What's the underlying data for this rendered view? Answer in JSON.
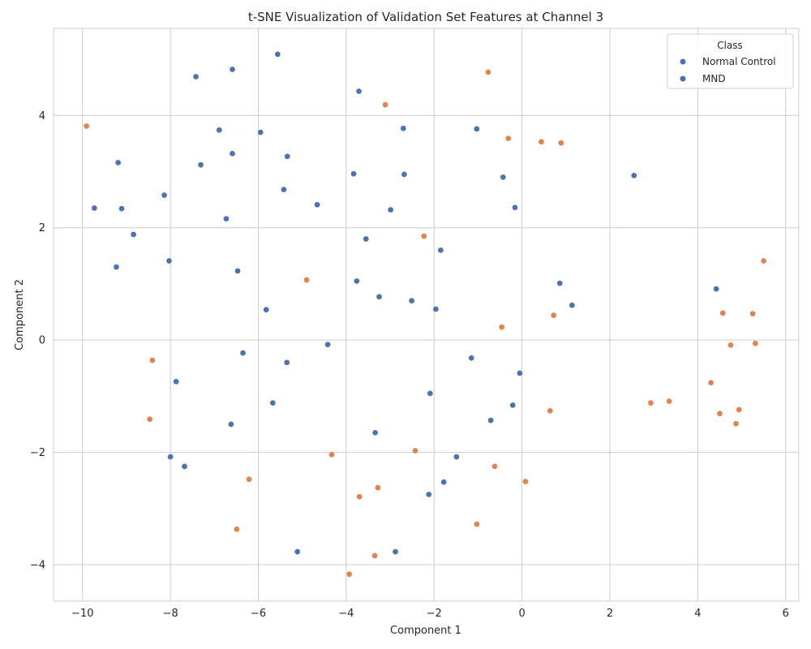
{
  "chart_data": {
    "type": "scatter",
    "title": "t-SNE Visualization of Validation Set Features at Channel 3",
    "xlabel": "Component 1",
    "ylabel": "Component 2",
    "xlim": [
      -10.66,
      6.3
    ],
    "ylim": [
      -4.65,
      5.55
    ],
    "xticks": [
      -10,
      -8,
      -6,
      -4,
      -2,
      0,
      2,
      4,
      6
    ],
    "yticks": [
      -4,
      -2,
      0,
      2,
      4
    ],
    "xtick_labels": [
      "−10",
      "−8",
      "−6",
      "−4",
      "−2",
      "0",
      "2",
      "4",
      "6"
    ],
    "ytick_labels": [
      "−4",
      "−2",
      "0",
      "2",
      "4"
    ],
    "grid": true,
    "legend": {
      "title": "Class",
      "placement": "top-right",
      "entries": [
        "Normal Control",
        "MND"
      ]
    },
    "series": [
      {
        "name": "Normal Control",
        "color": "#4c72b0",
        "points": [
          [
            -5.56,
            5.09
          ],
          [
            -6.59,
            4.82
          ],
          [
            -7.42,
            4.69
          ],
          [
            -3.71,
            4.43
          ],
          [
            -6.89,
            3.74
          ],
          [
            -5.95,
            3.7
          ],
          [
            -2.7,
            3.77
          ],
          [
            -1.03,
            3.76
          ],
          [
            -9.19,
            3.16
          ],
          [
            -7.31,
            3.12
          ],
          [
            -6.59,
            3.32
          ],
          [
            -5.34,
            3.27
          ],
          [
            -3.83,
            2.96
          ],
          [
            -2.68,
            2.95
          ],
          [
            -0.43,
            2.9
          ],
          [
            2.55,
            2.93
          ],
          [
            -8.14,
            2.58
          ],
          [
            -9.73,
            2.35
          ],
          [
            -9.11,
            2.34
          ],
          [
            -6.73,
            2.16
          ],
          [
            -5.42,
            2.68
          ],
          [
            -4.66,
            2.41
          ],
          [
            -2.99,
            2.32
          ],
          [
            -0.16,
            2.36
          ],
          [
            -8.84,
            1.88
          ],
          [
            -8.03,
            1.41
          ],
          [
            -9.23,
            1.3
          ],
          [
            -6.47,
            1.23
          ],
          [
            -3.55,
            1.8
          ],
          [
            -1.85,
            1.6
          ],
          [
            -3.76,
            1.05
          ],
          [
            -3.25,
            0.77
          ],
          [
            -2.51,
            0.7
          ],
          [
            -1.96,
            0.55
          ],
          [
            -5.82,
            0.54
          ],
          [
            0.86,
            1.01
          ],
          [
            1.14,
            0.62
          ],
          [
            4.42,
            0.91
          ],
          [
            -6.35,
            -0.23
          ],
          [
            -5.35,
            -0.4
          ],
          [
            -4.42,
            -0.08
          ],
          [
            -1.15,
            -0.32
          ],
          [
            -0.05,
            -0.59
          ],
          [
            -7.87,
            -0.74
          ],
          [
            -2.09,
            -0.95
          ],
          [
            -5.67,
            -1.12
          ],
          [
            -0.21,
            -1.16
          ],
          [
            -6.62,
            -1.5
          ],
          [
            -0.71,
            -1.43
          ],
          [
            -3.34,
            -1.65
          ],
          [
            -8.0,
            -2.08
          ],
          [
            -7.68,
            -2.25
          ],
          [
            -1.49,
            -2.08
          ],
          [
            -1.78,
            -2.53
          ],
          [
            -2.12,
            -2.75
          ],
          [
            -5.11,
            -3.77
          ],
          [
            -2.88,
            -3.77
          ]
        ]
      },
      {
        "name": "MND",
        "color": "#dd8452",
        "points": [
          [
            -9.91,
            3.81
          ],
          [
            -0.77,
            4.77
          ],
          [
            -3.11,
            4.19
          ],
          [
            -0.31,
            3.59
          ],
          [
            0.44,
            3.53
          ],
          [
            0.89,
            3.51
          ],
          [
            -2.23,
            1.85
          ],
          [
            -4.9,
            1.07
          ],
          [
            5.5,
            1.41
          ],
          [
            0.72,
            0.44
          ],
          [
            4.57,
            0.48
          ],
          [
            5.25,
            0.47
          ],
          [
            -0.46,
            0.23
          ],
          [
            4.75,
            -0.09
          ],
          [
            5.31,
            -0.06
          ],
          [
            -8.41,
            -0.36
          ],
          [
            4.3,
            -0.76
          ],
          [
            2.93,
            -1.12
          ],
          [
            3.35,
            -1.09
          ],
          [
            0.64,
            -1.26
          ],
          [
            4.94,
            -1.24
          ],
          [
            4.5,
            -1.31
          ],
          [
            4.87,
            -1.49
          ],
          [
            -8.47,
            -1.41
          ],
          [
            -2.43,
            -1.97
          ],
          [
            -4.33,
            -2.04
          ],
          [
            -0.62,
            -2.25
          ],
          [
            -6.21,
            -2.48
          ],
          [
            0.08,
            -2.52
          ],
          [
            -3.28,
            -2.63
          ],
          [
            -3.7,
            -2.79
          ],
          [
            -1.03,
            -3.28
          ],
          [
            -6.49,
            -3.37
          ],
          [
            -3.35,
            -3.84
          ],
          [
            -3.93,
            -4.17
          ]
        ]
      }
    ]
  }
}
